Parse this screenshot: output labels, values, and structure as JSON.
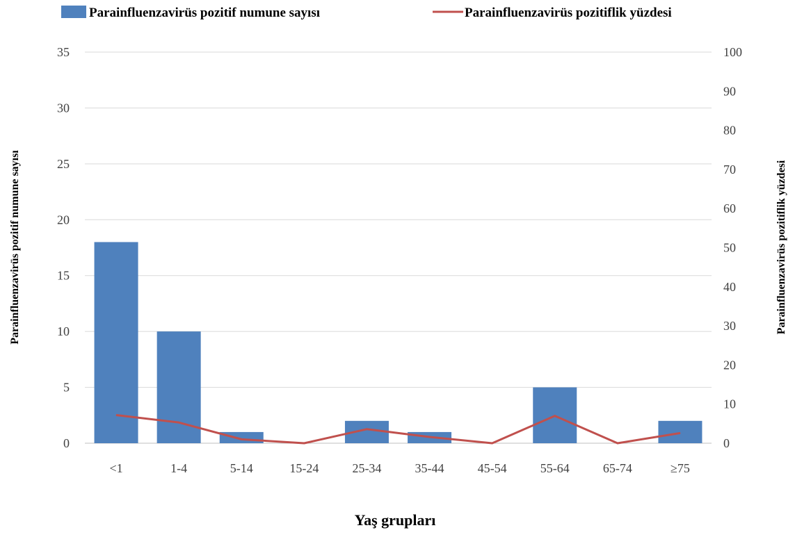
{
  "chart_data": {
    "type": "bar",
    "categories": [
      "<1",
      "1-4",
      "5-14",
      "15-24",
      "25-34",
      "35-44",
      "45-54",
      "55-64",
      "65-74",
      "≥75"
    ],
    "series": [
      {
        "name": "Parainfluenzavirüs pozitif numune sayısı",
        "type": "bar",
        "axis": "left",
        "color": "#4f81bd",
        "values": [
          18,
          10,
          1,
          0,
          2,
          1,
          0,
          5,
          0,
          2
        ]
      },
      {
        "name": "Parainfluenzavirüs pozitiflik yüzdesi",
        "type": "line",
        "axis": "right",
        "color": "#c0504d",
        "values": [
          7.2,
          5.3,
          1.0,
          0,
          3.6,
          1.6,
          0,
          7.0,
          0,
          2.6
        ]
      }
    ],
    "xlabel": "Yaş grupları",
    "ylabel": "Parainfluenzavirüs pozitif numune sayısı",
    "y2label": "Parainfluenzavirüs pozitiflik yüzdesi",
    "ylim": [
      0,
      35
    ],
    "y2lim": [
      0,
      100
    ],
    "yticks": [
      0,
      5,
      10,
      15,
      20,
      25,
      30,
      35
    ],
    "y2ticks": [
      0,
      10,
      20,
      30,
      40,
      50,
      60,
      70,
      80,
      90,
      100
    ],
    "grid": true,
    "legend_position": "top"
  }
}
